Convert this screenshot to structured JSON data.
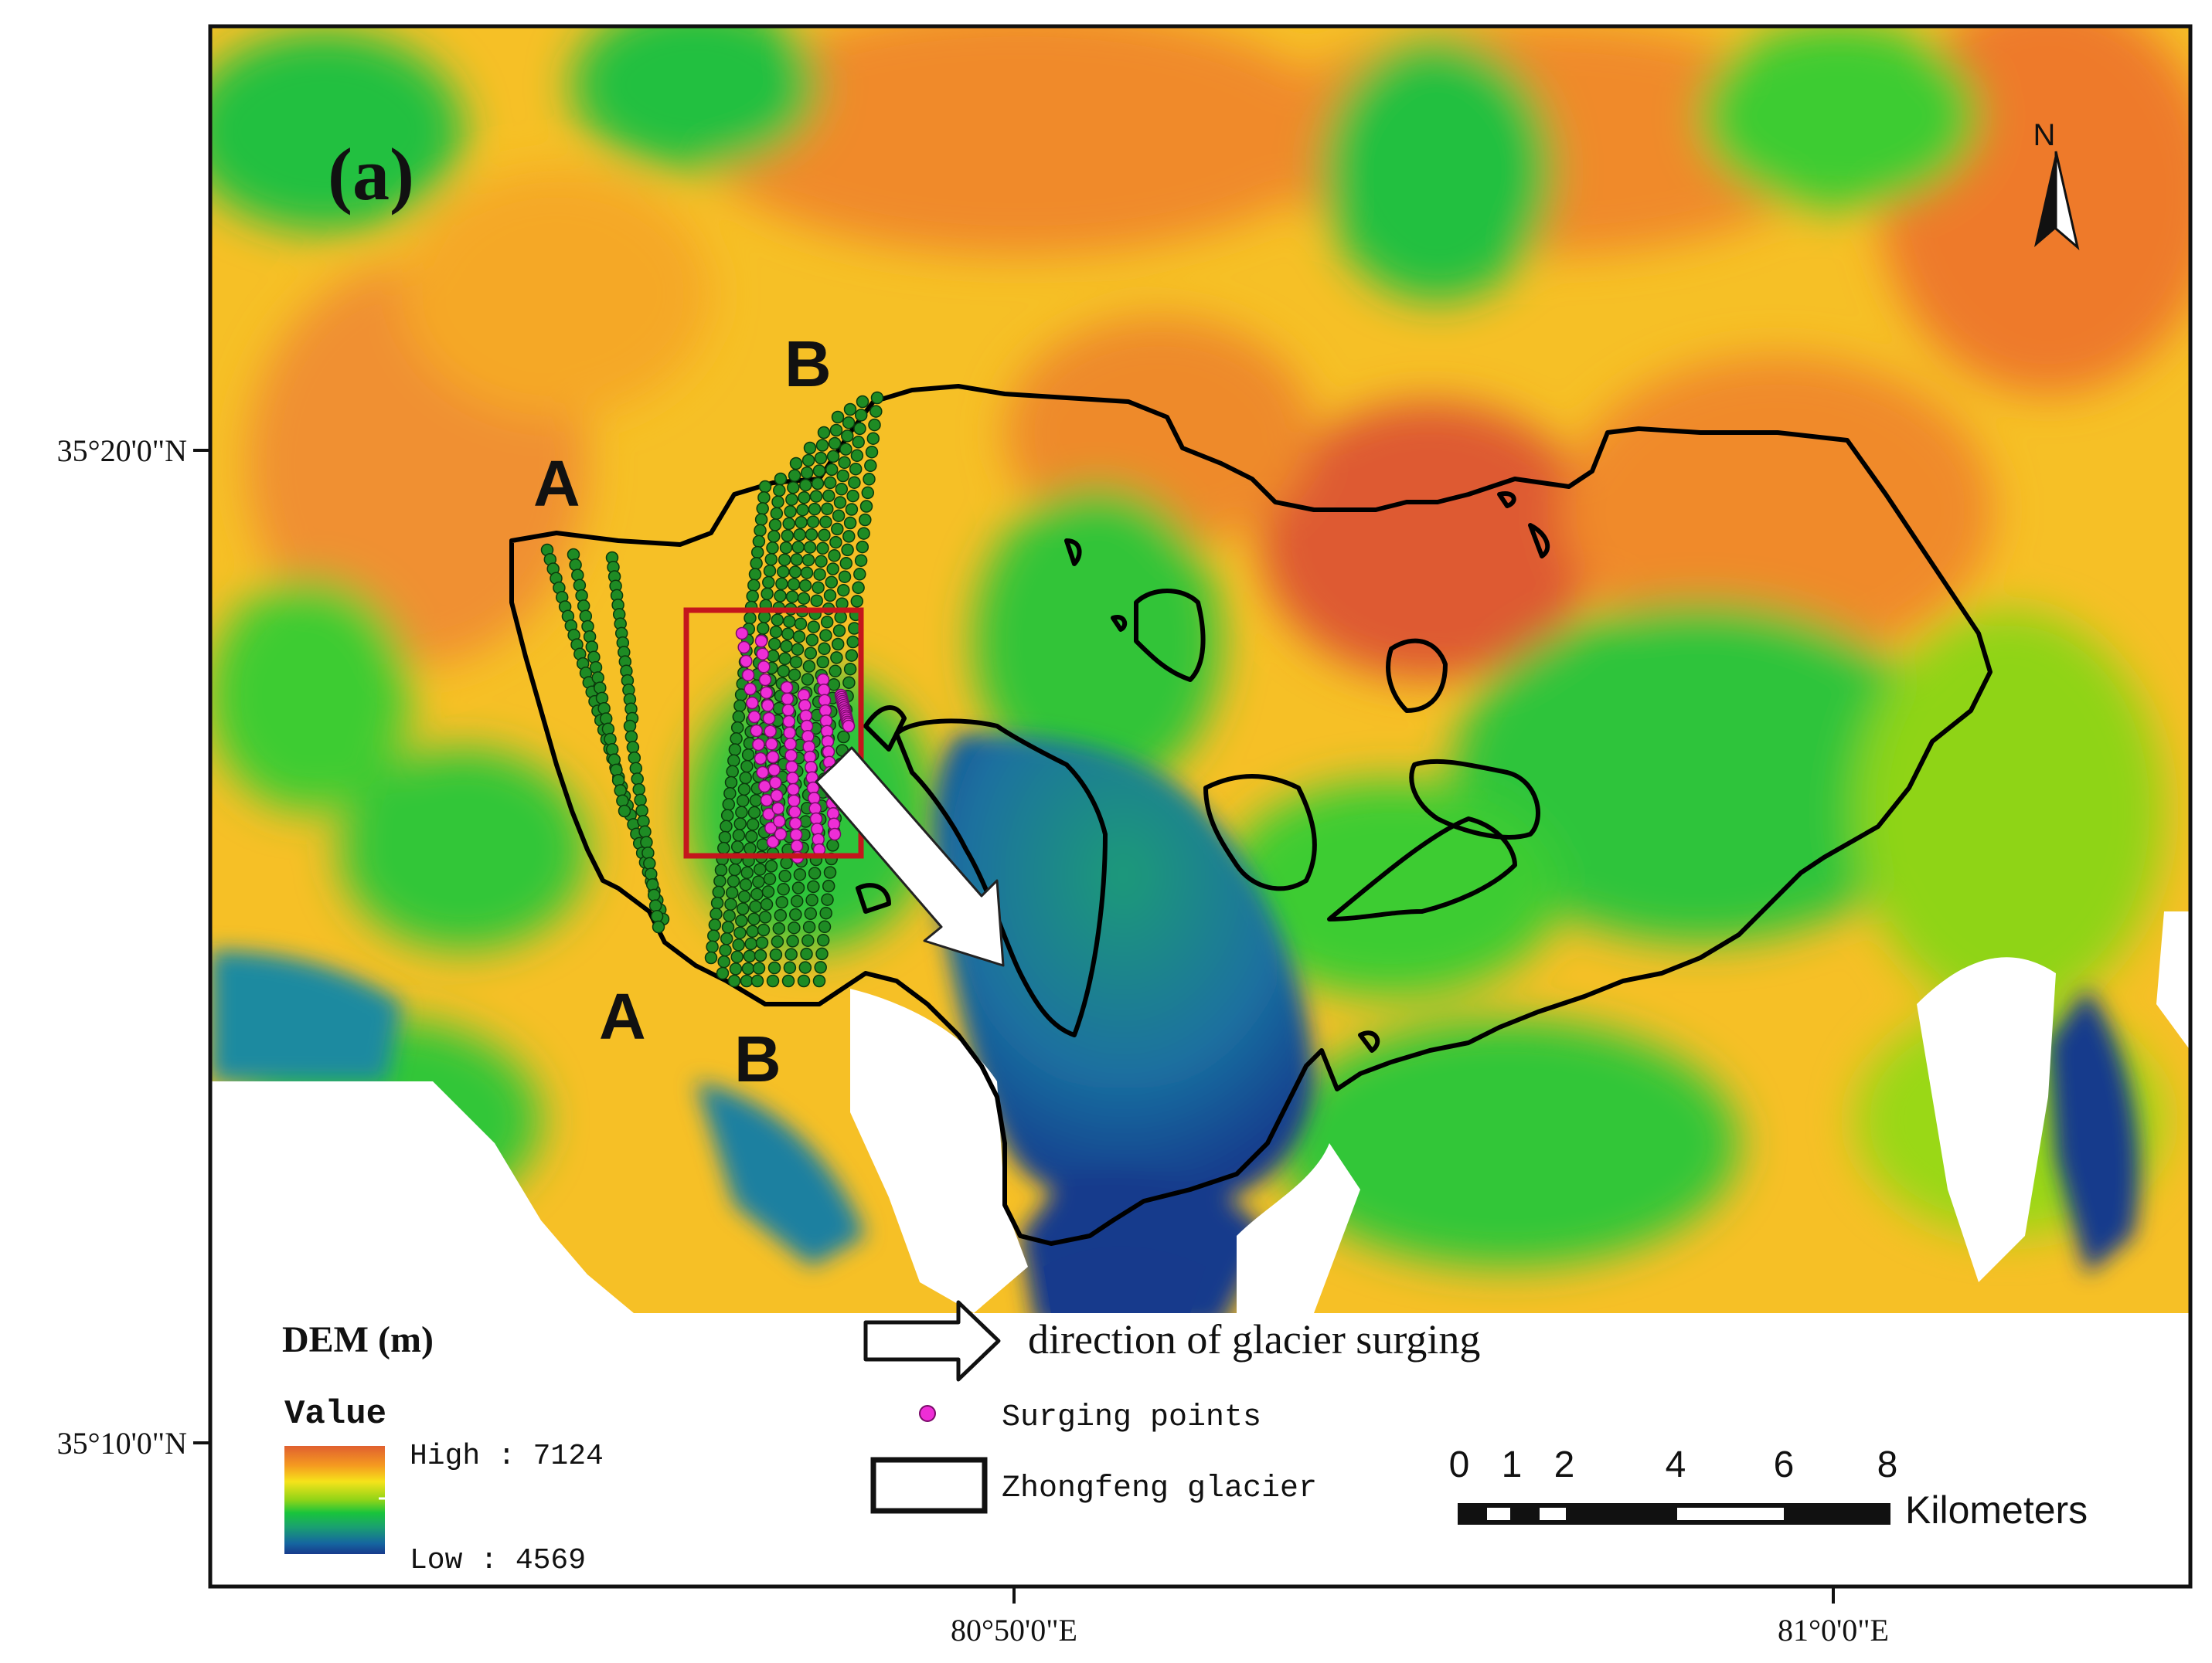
{
  "panel_label": "(a)",
  "profile_labels": {
    "a_top": "A",
    "b_top": "B",
    "a_bottom": "A",
    "b_bottom": "B"
  },
  "axes": {
    "lat_ticks": [
      "35°20'0\"N",
      "35°10'0\"N"
    ],
    "lon_ticks": [
      "80°50'0\"E",
      "81°0'0\"E"
    ]
  },
  "north_arrow": {
    "label": "N",
    "icon": "north-arrow-icon"
  },
  "dem_legend": {
    "title": "DEM (m)",
    "subtitle": "Value",
    "high_label": "High : 7124",
    "low_label": "Low : 4569",
    "high_value": 7124,
    "low_value": 4569,
    "unit": "m",
    "ramp_colors": [
      "#e06030",
      "#f59a20",
      "#f6e31a",
      "#8fd418",
      "#19c43c",
      "#1aa070",
      "#1566a0",
      "#173a8c"
    ]
  },
  "symbol_legend": {
    "arrow_label": "direction of glacier surging",
    "points_label": "Surging points",
    "outline_label": "Zhongfeng glacier",
    "points_color": "#ee2ed6",
    "outline_color": "#000000"
  },
  "scale_bar": {
    "tick_labels": [
      "0",
      "1",
      "2",
      "4",
      "6",
      "8"
    ],
    "unit": "Kilometers"
  },
  "colors": {
    "highlight_box": "#c4161c",
    "profile_points": "#1e8b24",
    "water_nodata": "#ffffff"
  }
}
